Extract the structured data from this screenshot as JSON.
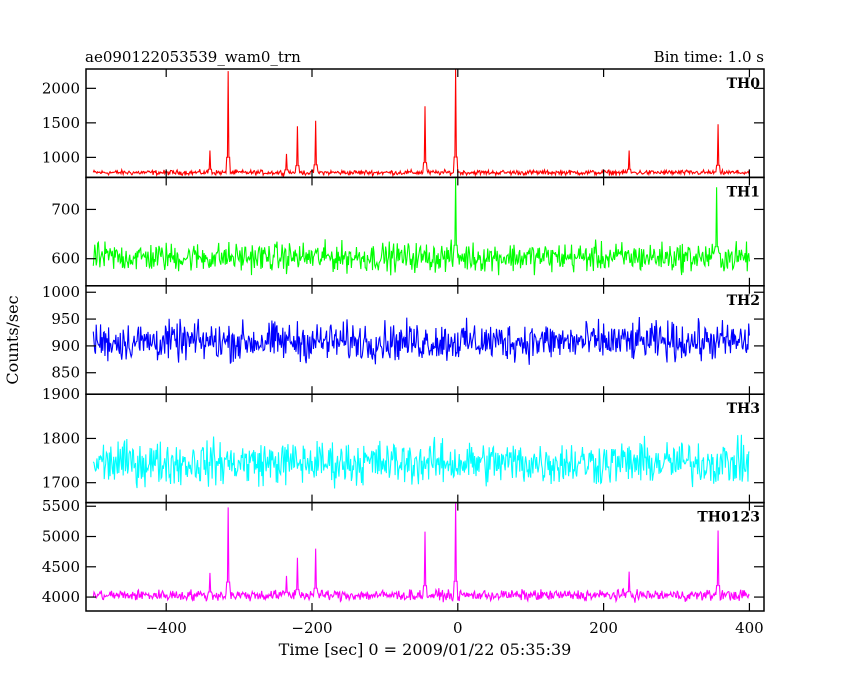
{
  "chart_data": {
    "type": "line",
    "title": "ae090122053539_wam0_trn",
    "bin_time_label": "Bin time: 1.0 s",
    "xlabel": "Time [sec] 0 = 2009/01/22 05:35:39",
    "ylabel": "Counts/sec",
    "xlim": [
      -510,
      420
    ],
    "x_ticks": [
      -400,
      -200,
      0,
      200,
      400
    ],
    "x_tick_labels": [
      "−400",
      "−200",
      "0",
      "200",
      "400"
    ],
    "x_range": [
      -500,
      400
    ],
    "panels": [
      {
        "name": "TH0",
        "color": "#ff0000",
        "ylim": [
          710,
          2280
        ],
        "y_ticks": [
          1000,
          1500,
          2000
        ],
        "y_tick_labels": [
          "1000",
          "1500",
          "2000"
        ],
        "baseline": 780,
        "noise": 22,
        "spikes": [
          [
            -340,
            1100
          ],
          [
            -315,
            2250
          ],
          [
            -235,
            1050
          ],
          [
            -220,
            1450
          ],
          [
            -195,
            1530
          ],
          [
            -45,
            1740
          ],
          [
            -3,
            2280
          ],
          [
            235,
            1100
          ],
          [
            357,
            1480
          ]
        ]
      },
      {
        "name": "TH1",
        "color": "#00ff00",
        "ylim": [
          545,
          765
        ],
        "y_ticks": [
          600,
          700
        ],
        "y_tick_labels": [
          "600",
          "700"
        ],
        "baseline": 603,
        "noise": 18,
        "spikes": [
          [
            -3,
            765
          ],
          [
            355,
            745
          ]
        ]
      },
      {
        "name": "TH2",
        "color": "#0000ff",
        "ylim": [
          810,
          1012
        ],
        "y_ticks": [
          850,
          900,
          950,
          1000
        ],
        "y_tick_labels": [
          "850",
          "900",
          "950",
          "1000"
        ],
        "baseline": 908,
        "noise": 22,
        "spikes": []
      },
      {
        "name": "TH3",
        "color": "#00ffff",
        "ylim": [
          1655,
          1900
        ],
        "y_ticks": [
          1700,
          1800,
          1900
        ],
        "y_tick_labels": [
          "1700",
          "1800",
          "1900"
        ],
        "baseline": 1745,
        "noise": 30,
        "spikes": []
      },
      {
        "name": "TH0123",
        "color": "#ff00ff",
        "ylim": [
          3770,
          5560
        ],
        "y_ticks": [
          4000,
          4500,
          5000,
          5500
        ],
        "y_tick_labels": [
          "4000",
          "4500",
          "5000",
          "5500"
        ],
        "baseline": 4030,
        "noise": 55,
        "spikes": [
          [
            -340,
            4400
          ],
          [
            -315,
            5480
          ],
          [
            -235,
            4350
          ],
          [
            -220,
            4650
          ],
          [
            -195,
            4800
          ],
          [
            -45,
            5080
          ],
          [
            -3,
            5560
          ],
          [
            235,
            4420
          ],
          [
            357,
            5100
          ]
        ]
      }
    ]
  }
}
